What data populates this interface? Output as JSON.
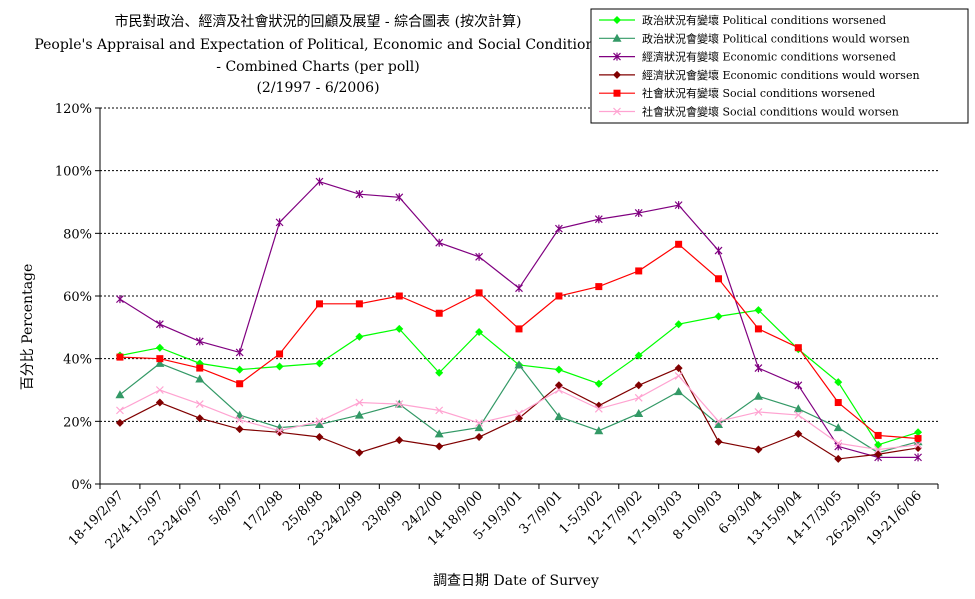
{
  "chart_data": {
    "type": "line",
    "title": "市民對政治、經濟及社會狀況的回顧及展望 - 綜合圖表 (按次計算)",
    "title_line2": "People's Appraisal and Expectation of Political, Economic and Social Conditions",
    "title_line3": "- Combined Charts  (per poll)",
    "title_line4": "(2/1997 - 6/2006)",
    "xlabel": "調查日期 Date of Survey",
    "ylabel": "百分比 Percentage",
    "ylim": [
      0,
      120
    ],
    "yticks": [
      "0%",
      "20%",
      "40%",
      "60%",
      "80%",
      "100%",
      "120%"
    ],
    "grid": "horizontal dotted",
    "legend_position": "top-right",
    "categories": [
      "18-19/2/97",
      "22/4-1/5/97",
      "23-24/6/97",
      "5/8/97",
      "17/2/98",
      "25/8/98",
      "23-24/2/99",
      "23/8/99",
      "24/2/00",
      "14-18/9/00",
      "5-19/3/01",
      "3-7/9/01",
      "1-5/3/02",
      "12-17/9/02",
      "17-19/3/03",
      "8-10/9/03",
      "6-9/3/04",
      "13-15/9/04",
      "14-17/3/05",
      "26-29/9/05",
      "19-21/6/06"
    ],
    "series": [
      {
        "name": "政治狀況有變壞 Political conditions worsened",
        "color": "#00ff00",
        "marker": "diamond",
        "values": [
          41,
          43.5,
          38.5,
          36.5,
          37.5,
          38.5,
          47,
          49.5,
          35.5,
          48.5,
          38,
          36.5,
          32,
          41,
          51,
          53.5,
          55.5,
          43,
          32.5,
          12.5,
          16.5
        ]
      },
      {
        "name": "政治狀況會變壞 Political conditions would worsen",
        "color": "#339966",
        "marker": "triangle",
        "values": [
          28.5,
          38.5,
          33.5,
          22,
          18,
          19,
          22,
          25.5,
          16,
          18,
          38,
          21.5,
          17,
          22.5,
          29.5,
          19,
          28,
          24,
          18,
          10,
          13.5
        ]
      },
      {
        "name": "經濟狀況有變壞 Economic conditions worsened",
        "color": "#800080",
        "marker": "star",
        "values": [
          59,
          51,
          45.5,
          42,
          83.5,
          96.5,
          92.5,
          91.5,
          77,
          72.5,
          62.5,
          81.5,
          84.5,
          86.5,
          89,
          74.5,
          37,
          31.5,
          12,
          8.5,
          8.5
        ]
      },
      {
        "name": "經濟狀況會變壞 Economic conditions would worsen",
        "color": "#800000",
        "marker": "diamond",
        "values": [
          19.5,
          26,
          21,
          17.5,
          16.5,
          15,
          10,
          14,
          12,
          15,
          21,
          31.5,
          25,
          31.5,
          37,
          13.5,
          11,
          16,
          8,
          9.5,
          11.5
        ]
      },
      {
        "name": "社會狀況有變壞 Social conditions worsened",
        "color": "#ff0000",
        "marker": "square",
        "values": [
          40.5,
          40,
          37,
          32,
          41.5,
          57.5,
          57.5,
          60,
          54.5,
          61,
          49.5,
          60,
          63,
          68,
          76.5,
          65.5,
          49.5,
          43.5,
          26,
          15.5,
          14.5
        ]
      },
      {
        "name": "社會狀況會變壞 Social conditions would worsen",
        "color": "#ffa3d1",
        "marker": "x",
        "values": [
          23.5,
          30,
          25.5,
          20.5,
          17,
          20,
          26,
          25.5,
          23.5,
          19.5,
          22.5,
          30,
          24,
          27.5,
          34.5,
          20,
          23,
          22,
          13,
          11,
          12.5
        ]
      }
    ]
  }
}
